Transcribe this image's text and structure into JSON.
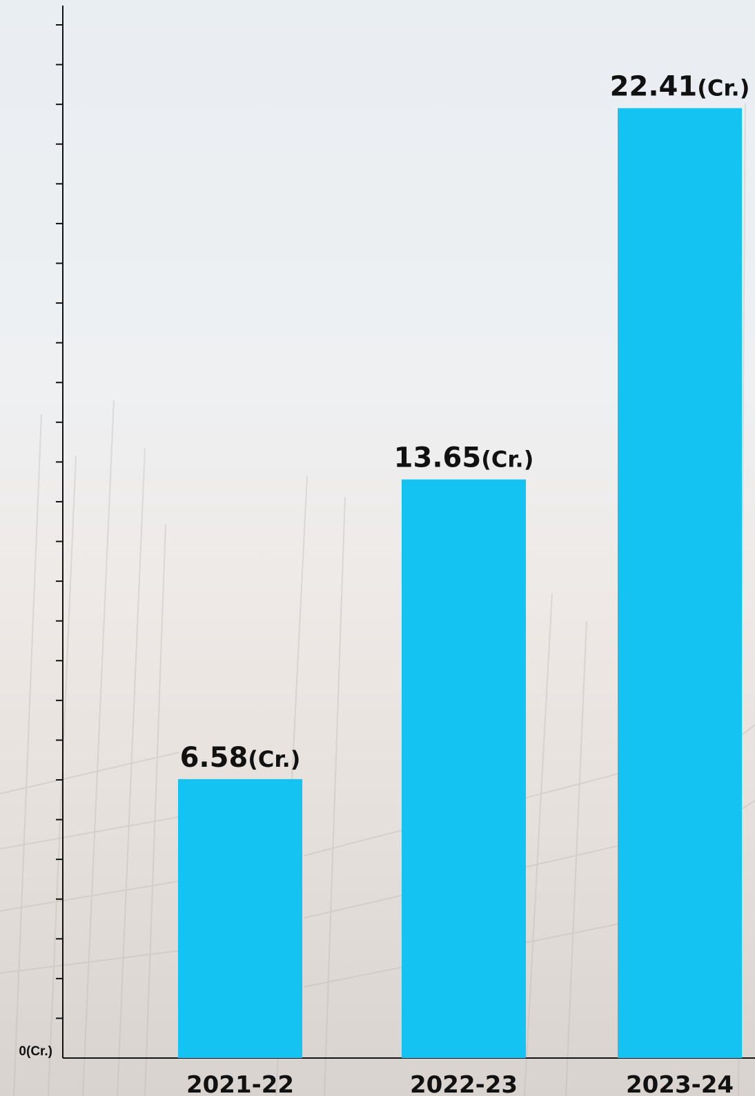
{
  "chart_data": {
    "type": "bar",
    "categories": [
      "2021-22",
      "2022-23",
      "2023-24"
    ],
    "values": [
      6.58,
      13.65,
      22.41
    ],
    "value_labels": [
      "6.58",
      "13.65",
      "22.41"
    ],
    "unit_suffix": "(Cr.)",
    "y_zero_label": "0(Cr.)",
    "ylim": [
      0,
      24.75
    ],
    "y_tick_step": 0.9375,
    "title": "",
    "xlabel": "",
    "ylabel": "",
    "grid": false,
    "bar_color": "#14c3f2",
    "axis_color": "#111111"
  }
}
